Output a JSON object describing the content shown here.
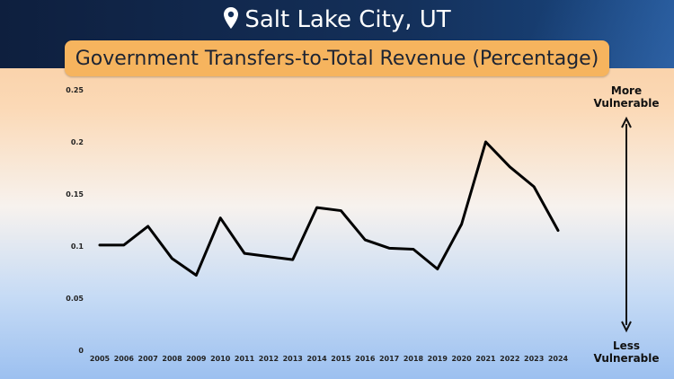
{
  "header": {
    "location": "Salt Lake City, UT",
    "location_icon": "map-pin-icon",
    "chart_title": "Government Transfers-to-Total Revenue (Percentage)"
  },
  "vulnerability": {
    "top_line1": "More",
    "top_line2": "Vulnerable",
    "bottom_line1": "Less",
    "bottom_line2": "Vulnerable"
  },
  "colors": {
    "banner": "#14305a",
    "title_box": "#f6b45e",
    "line": "#000000"
  },
  "chart_data": {
    "type": "line",
    "title": "Government Transfers-to-Total Revenue (Percentage)",
    "xlabel": "",
    "ylabel": "",
    "categories": [
      "2005",
      "2006",
      "2007",
      "2008",
      "2009",
      "2010",
      "2011",
      "2012",
      "2013",
      "2014",
      "2015",
      "2016",
      "2017",
      "2018",
      "2019",
      "2020",
      "2021",
      "2022",
      "2023",
      "2024"
    ],
    "series": [
      {
        "values": [
          0.101,
          0.101,
          0.119,
          0.088,
          0.072,
          0.127,
          0.093,
          0.09,
          0.087,
          0.137,
          0.134,
          0.106,
          0.098,
          0.097,
          0.078,
          0.121,
          0.2,
          0.176,
          0.157,
          0.115
        ]
      }
    ],
    "ylim": [
      0,
      0.25
    ],
    "yticks": [
      "0",
      "0.05",
      "0.1",
      "0.15",
      "0.2",
      "0.25"
    ],
    "ytick_values": [
      0,
      0.05,
      0.1,
      0.15,
      0.2,
      0.25
    ],
    "grid": false
  }
}
